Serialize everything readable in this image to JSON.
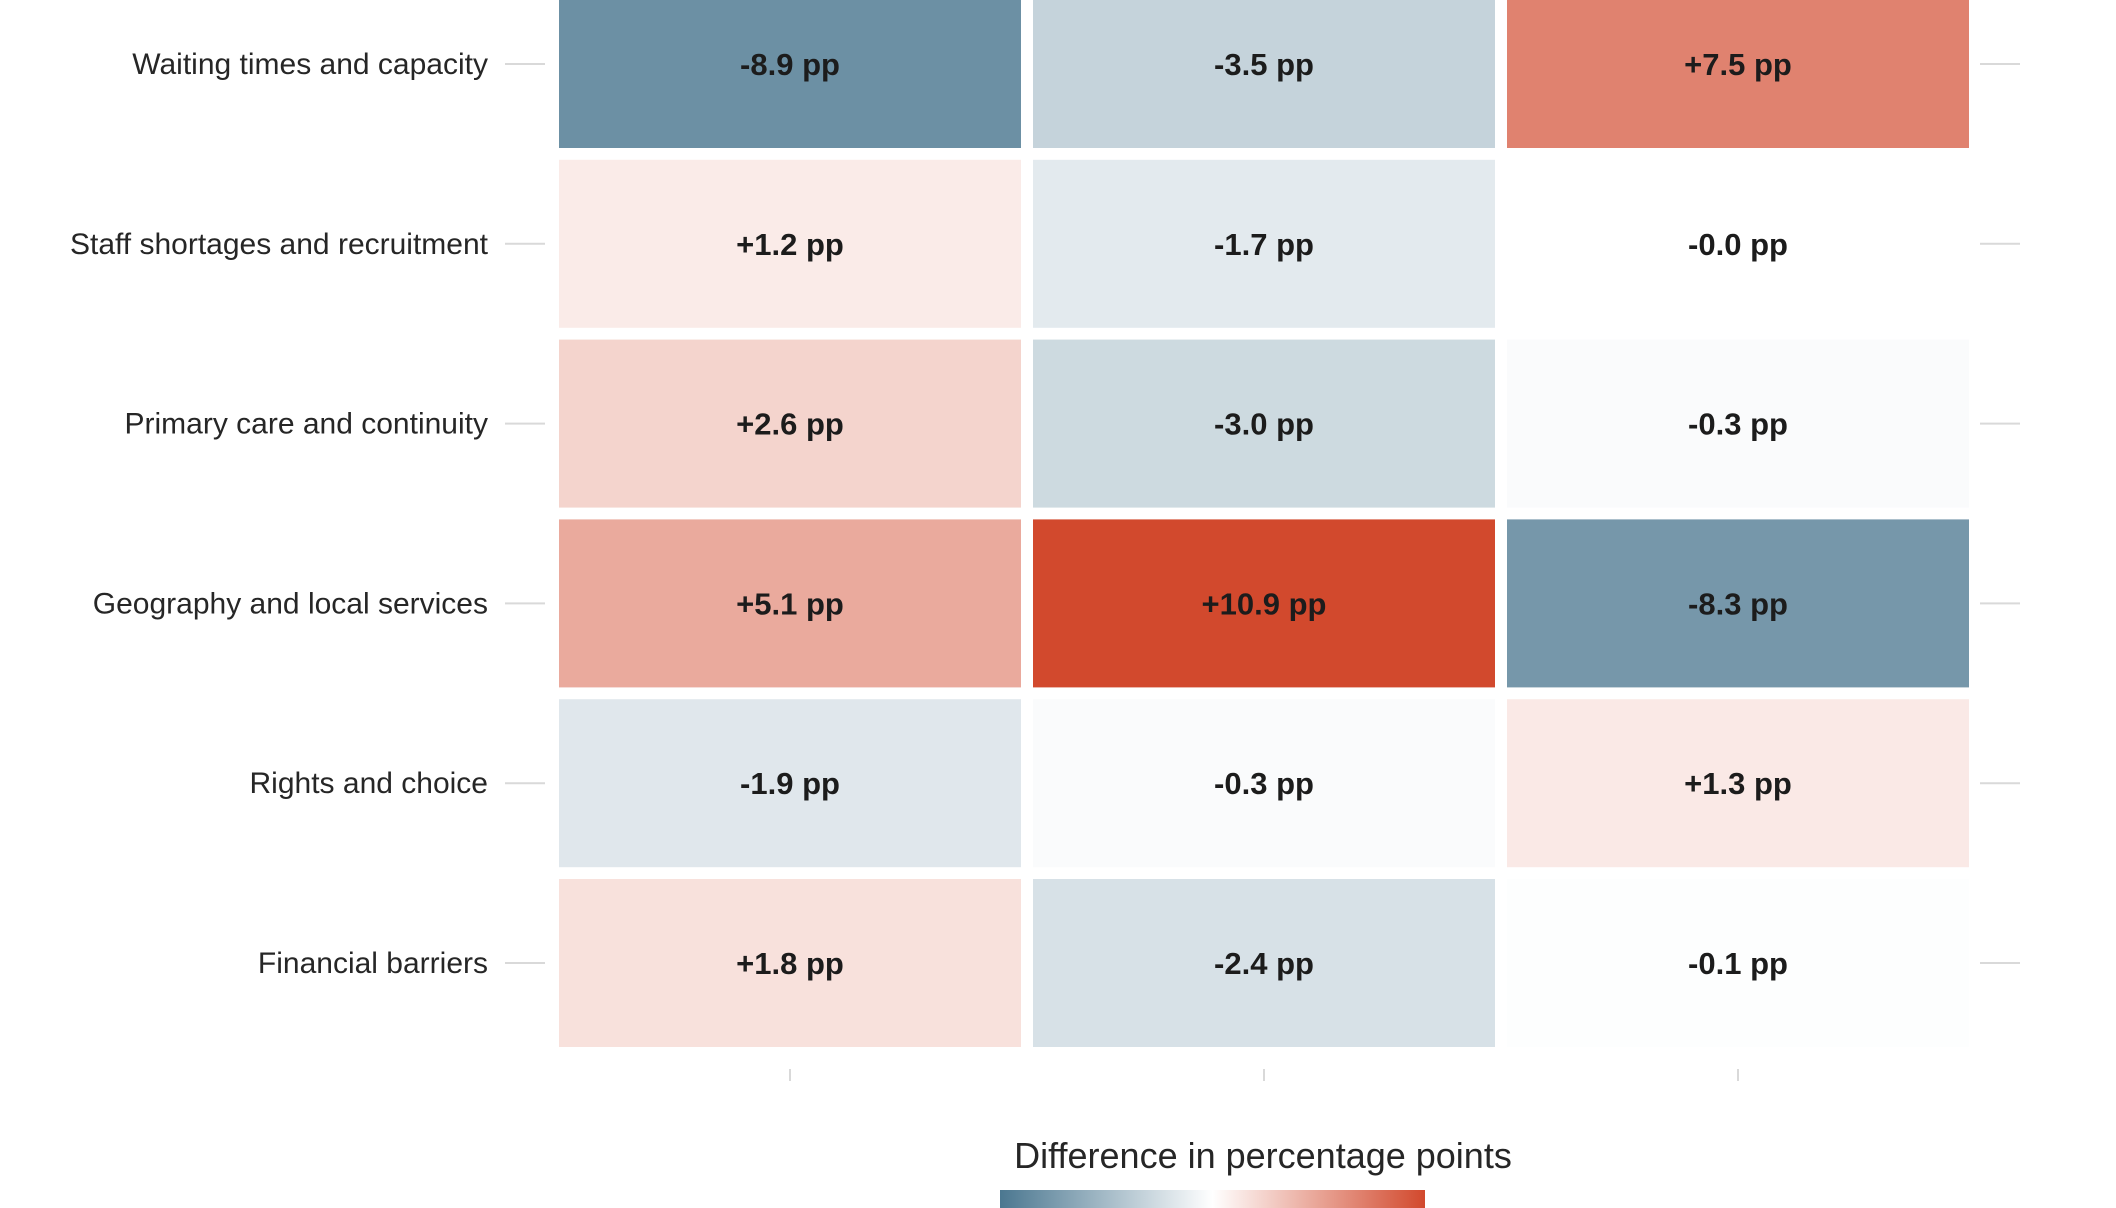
{
  "chart_data": {
    "type": "heatmap",
    "title": "",
    "xlabel": "",
    "ylabel": "",
    "rows": [
      "Waiting times and capacity",
      "Staff shortages and recruitment",
      "Primary care and continuity",
      "Geography and local services",
      "Rights and choice",
      "Financial barriers"
    ],
    "columns": [
      "",
      "",
      ""
    ],
    "values": [
      [
        -8.9,
        -3.5,
        7.5
      ],
      [
        1.2,
        -1.7,
        -0.0
      ],
      [
        2.6,
        -3.0,
        -0.3
      ],
      [
        5.1,
        10.9,
        -8.3
      ],
      [
        -1.9,
        -0.3,
        1.3
      ],
      [
        1.8,
        -2.4,
        -0.1
      ]
    ],
    "cell_labels": [
      [
        "-8.9 pp",
        "-3.5 pp",
        "+7.5 pp"
      ],
      [
        "+1.2 pp",
        "-1.7 pp",
        "-0.0 pp"
      ],
      [
        "+2.6 pp",
        "-3.0 pp",
        "-0.3 pp"
      ],
      [
        "+5.1 pp",
        "+10.9 pp",
        "-8.3 pp"
      ],
      [
        "-1.9 pp",
        "-0.3 pp",
        "+1.3 pp"
      ],
      [
        "+1.8 pp",
        "-2.4 pp",
        "-0.1 pp"
      ]
    ],
    "legend": {
      "title": "Difference in percentage points",
      "position": "bottom",
      "range": [
        -10.9,
        10.9
      ]
    },
    "colors": {
      "negative": "#4b7790",
      "neutral": "#ffffff",
      "positive": "#d2492d"
    },
    "grid": false
  }
}
